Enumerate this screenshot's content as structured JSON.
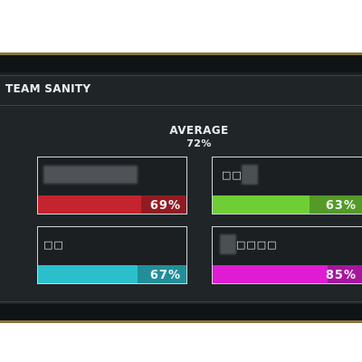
{
  "header": {
    "title": "TEAM SANITY"
  },
  "average": {
    "label": "AVERAGE",
    "value": "72%"
  },
  "members": [
    {
      "name": "",
      "sanity": "69%",
      "sanity_fraction": 0.69,
      "color": "#c3242e"
    },
    {
      "name": "□□",
      "sanity": "63%",
      "sanity_fraction": 0.63,
      "color": "#6fce34"
    },
    {
      "name": "□□",
      "sanity": "67%",
      "sanity_fraction": 0.67,
      "color": "#2bbfcc"
    },
    {
      "name": "□□□□",
      "sanity": "85%",
      "sanity_fraction": 0.85,
      "color": "#df1cd3"
    }
  ]
}
